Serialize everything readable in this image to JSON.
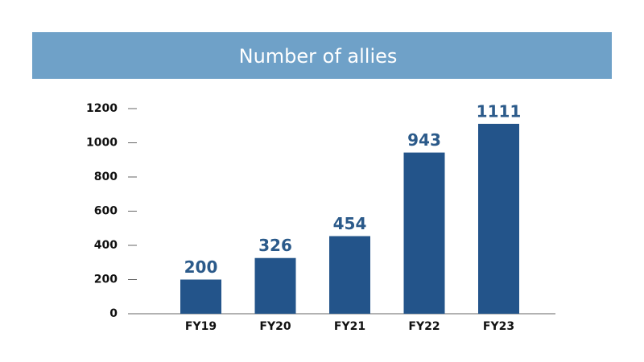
{
  "chart_data": {
    "type": "bar",
    "title": "Number of allies",
    "categories": [
      "FY19",
      "FY20",
      "FY21",
      "FY22",
      "FY23"
    ],
    "values": [
      200,
      326,
      454,
      943,
      1111
    ],
    "color": "#23548a",
    "ylim": [
      0,
      1200
    ],
    "yticks": [
      0,
      200,
      400,
      600,
      800,
      1000,
      1200
    ]
  }
}
